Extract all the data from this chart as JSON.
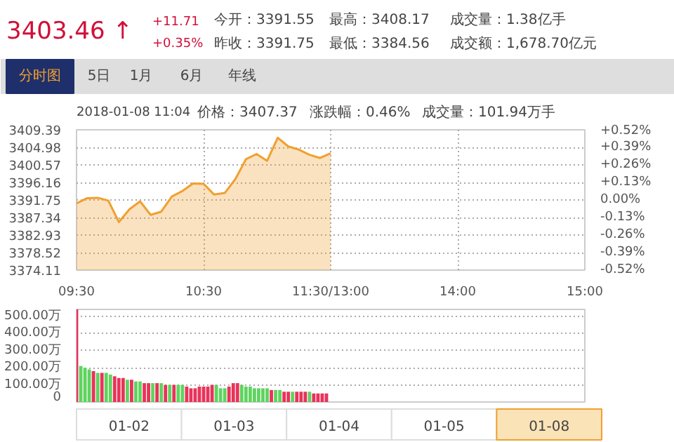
{
  "chart_data": [
    {
      "type": "other",
      "annotations": [
        "3403.46 ↑",
        "+11.71",
        "+0.35%",
        "今开：3391.55",
        "昨收：3391.75",
        "最高：3408.17",
        "最低：3384.56",
        "成交量：1.38亿手",
        "成交额：1,678.70亿元",
        "分时图",
        "5日",
        "1月",
        "6月",
        "年线",
        "2018-01-08 11:04",
        "价格：3407.37",
        "涨跌幅：0.46%",
        "成交量：101.94万手"
      ]
    },
    {
      "type": "area",
      "color": "#f0a030",
      "grid": true,
      "line_style": "solid",
      "categories": [
        "09:30",
        null,
        null,
        null,
        null,
        null,
        null,
        null,
        null,
        null,
        null,
        null,
        "10:30",
        null,
        null,
        null,
        null,
        null,
        null,
        null,
        null,
        null,
        null,
        null,
        "11:30/13:00",
        null,
        null,
        null,
        null,
        null,
        null,
        null,
        null,
        null,
        null,
        null,
        "14:00",
        null,
        null,
        null,
        null,
        null,
        null,
        null,
        null,
        null,
        null,
        null,
        "15:00"
      ],
      "values": [
        3390.9,
        3392.2,
        3392.3,
        3391.6,
        3386.2,
        3389.4,
        3391.4,
        3388.0,
        3388.8,
        3392.6,
        3394.0,
        3395.9,
        3395.8,
        3393.1,
        3393.5,
        3397.0,
        3402.0,
        3403.3,
        3401.6,
        3407.4,
        3405.2,
        3404.4,
        3403.1,
        3402.3,
        3403.5,
        null,
        null,
        null,
        null,
        null,
        null,
        null,
        null,
        null,
        null,
        null,
        null,
        null,
        null,
        null,
        null,
        null,
        null,
        null,
        null,
        null,
        null,
        null,
        null
      ],
      "ylim": [
        3374.11,
        3409.39
      ],
      "yticks": [
        3374.11,
        3378.52,
        3382.93,
        3387.34,
        3391.75,
        3396.16,
        3400.57,
        3404.98,
        3409.39
      ],
      "y2lim": [
        -0.52,
        0.52
      ],
      "y2ticks": [
        {
          "value": -0.52,
          "label": "-0.52%"
        },
        {
          "value": -0.39,
          "label": "-0.39%"
        },
        {
          "value": -0.26,
          "label": "-0.26%"
        },
        {
          "value": -0.13,
          "label": "-0.13%"
        },
        {
          "value": 0,
          "label": "0.00%"
        },
        {
          "value": 0.13,
          "label": "+0.13%"
        },
        {
          "value": 0.26,
          "label": "+0.26%"
        },
        {
          "value": 0.39,
          "label": "+0.39%"
        },
        {
          "value": 0.52,
          "label": "+0.52%"
        }
      ]
    },
    {
      "type": "bar",
      "grid": "y",
      "tick_labels": "y",
      "categories": [
        null,
        null,
        null,
        null,
        null,
        null,
        null,
        null,
        null,
        null,
        null,
        null,
        null,
        null,
        null,
        null,
        null,
        null,
        null,
        null,
        null,
        null,
        null,
        null,
        null,
        null,
        null,
        null,
        null,
        null,
        null,
        null,
        null,
        null,
        null,
        null,
        null,
        null,
        null,
        null,
        null,
        null,
        null,
        null,
        null,
        null,
        null,
        null,
        null,
        null,
        null,
        null,
        null,
        null,
        null,
        null,
        null,
        null,
        null,
        null,
        null,
        null,
        null,
        null,
        null,
        null,
        null,
        null,
        null,
        null,
        null,
        null,
        null,
        null,
        null,
        null,
        null,
        null,
        null,
        null,
        null,
        null,
        null,
        null,
        null,
        null,
        null,
        null,
        null,
        null,
        null,
        null,
        null,
        null,
        null,
        null,
        null,
        null,
        null,
        null,
        null,
        null,
        null,
        null,
        null,
        null,
        null,
        null,
        null,
        null,
        null,
        null,
        null,
        null,
        null,
        null,
        null,
        null,
        null,
        null,
        null
      ],
      "values": [
        540,
        210,
        200,
        190,
        180,
        170,
        170,
        170,
        160,
        150,
        140,
        140,
        130,
        130,
        120,
        120,
        110,
        110,
        110,
        110,
        110,
        100,
        100,
        100,
        100,
        100,
        90,
        80,
        80,
        90,
        90,
        90,
        100,
        100,
        80,
        80,
        90,
        110,
        110,
        100,
        90,
        90,
        80,
        80,
        80,
        80,
        70,
        70,
        70,
        60,
        60,
        60,
        60,
        60,
        60,
        60,
        50,
        50,
        50,
        50,
        null,
        null,
        null,
        null,
        null,
        null,
        null,
        null,
        null,
        null,
        null,
        null,
        null,
        null,
        null,
        null,
        null,
        null,
        null,
        null,
        null,
        null,
        null,
        null,
        null,
        null,
        null,
        null,
        null,
        null,
        null,
        null,
        null,
        null,
        null,
        null,
        null,
        null,
        null,
        null,
        null,
        null,
        null,
        null,
        null,
        null,
        null,
        null,
        null,
        null,
        null,
        null,
        null,
        null,
        null,
        null,
        null,
        null,
        null,
        null,
        null
      ],
      "colors": [
        "#e8335a",
        "#5fd35f",
        "#5fd35f",
        "#5fd35f",
        "#e8335a",
        "#5fd35f",
        "#e8335a",
        "#5fd35f",
        "#5fd35f",
        "#e8335a",
        "#e8335a",
        "#e8335a",
        "#5fd35f",
        "#e8335a",
        "#5fd35f",
        "#5fd35f",
        "#e8335a",
        "#e8335a",
        "#5fd35f",
        "#e8335a",
        "#5fd35f",
        "#e8335a",
        "#5fd35f",
        "#e8335a",
        "#5fd35f",
        "#5fd35f",
        "#e8335a",
        "#e8335a",
        "#e8335a",
        "#e8335a",
        "#e8335a",
        "#e8335a",
        "#e8335a",
        "#5fd35f",
        "#5fd35f",
        "#5fd35f",
        "#e8335a",
        "#e8335a",
        "#e8335a",
        "#5fd35f",
        "#5fd35f",
        "#5fd35f",
        "#5fd35f",
        "#5fd35f",
        "#5fd35f",
        "#5fd35f",
        "#e8335a",
        "#5fd35f",
        "#5fd35f",
        "#e8335a",
        "#e8335a",
        "#5fd35f",
        "#e8335a",
        "#e8335a",
        "#e8335a",
        "#5fd35f",
        "#e8335a",
        "#e8335a",
        "#e8335a",
        "#e8335a",
        "#5fd35f",
        "#e8335a",
        "#e8335a",
        "#e8335a",
        null,
        null,
        null,
        null,
        null,
        null,
        null,
        null,
        null,
        null,
        null,
        null,
        null,
        null,
        null,
        null,
        null,
        null,
        null,
        null,
        null,
        null,
        null,
        null,
        null,
        null,
        null,
        null,
        null,
        null,
        null,
        null,
        null,
        null,
        null,
        null,
        null,
        null,
        null,
        null,
        null,
        null,
        null,
        null,
        null,
        null,
        null,
        null,
        null,
        null,
        null,
        null,
        null,
        null,
        null,
        null,
        null
      ],
      "ylim": [
        0,
        540
      ],
      "yticks": [
        0,
        {
          "value": 100,
          "label": "100.00万"
        },
        {
          "value": 200,
          "label": "200.00万"
        },
        {
          "value": 300,
          "label": "300.00万"
        },
        {
          "value": 400,
          "label": "400.00万"
        },
        {
          "value": 500,
          "label": "500.00万"
        }
      ],
      "annotations": [
        "01-02",
        "01-03",
        "01-04",
        "01-05",
        "01-08"
      ]
    }
  ]
}
